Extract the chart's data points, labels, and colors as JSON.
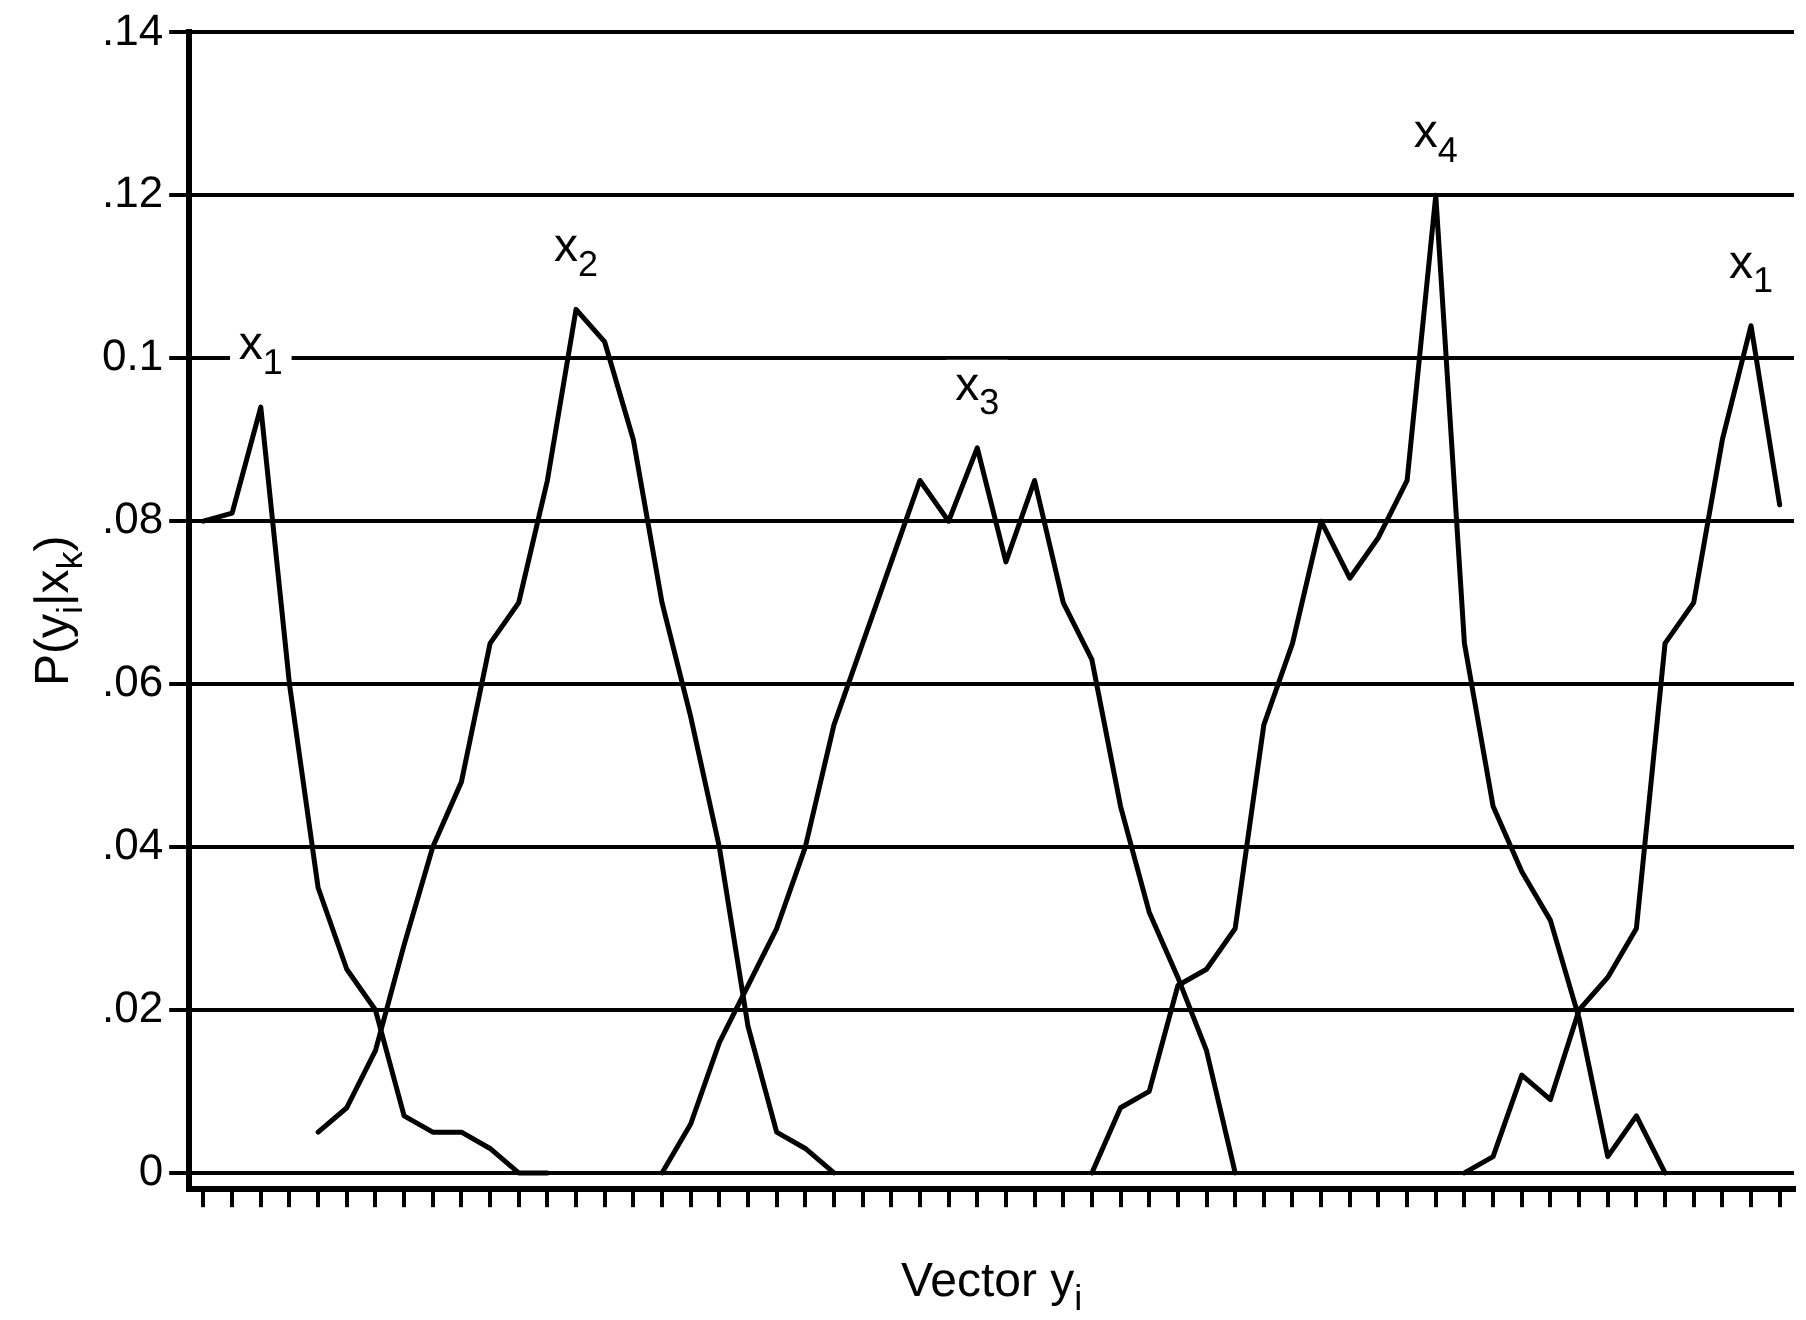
{
  "chart_data": {
    "type": "line",
    "xlabel": "Vector y$_{i}$",
    "ylabel": "P(y$_{i}$|x$_{k}$)",
    "categories": [
      null,
      null,
      null,
      null,
      null,
      null,
      null,
      null,
      null,
      null,
      null,
      null,
      null,
      null,
      null,
      null,
      null,
      null,
      null,
      null,
      null,
      null,
      null,
      null,
      null,
      null,
      null,
      null,
      null,
      null,
      null,
      null,
      null,
      null,
      null,
      null,
      null,
      null,
      null,
      null,
      null,
      null,
      null,
      null,
      null,
      null,
      null,
      null,
      null,
      null,
      null,
      null,
      null,
      null,
      null,
      null
    ],
    "ylim": [
      -0.002,
      0.14
    ],
    "yticks": [
      {
        "value": 0,
        "label": "0"
      },
      {
        "value": 0.02,
        "label": ".02"
      },
      {
        "value": 0.04,
        "label": ".04"
      },
      {
        "value": 0.06,
        "label": ".06"
      },
      {
        "value": 0.08,
        "label": ".08"
      },
      {
        "value": 0.1,
        "label": "0.1"
      },
      {
        "value": 0.12,
        "label": ".12"
      },
      {
        "value": 0.14,
        "label": ".14"
      }
    ],
    "grid": "y",
    "legend": false,
    "marker": "none",
    "line_style": "solid",
    "series": [
      {
        "name": "x$_{1}$",
        "color": "#000000",
        "values": [
          0.08,
          0.081,
          0.094,
          0.06,
          0.035,
          0.025,
          0.02,
          0.007,
          0.005,
          0.005,
          0.003,
          0,
          0,
          null,
          null,
          null,
          null,
          null,
          null,
          null,
          null,
          null,
          null,
          null,
          null,
          null,
          null,
          null,
          null,
          null,
          null,
          null,
          null,
          null,
          null,
          null,
          null,
          null,
          null,
          null,
          null,
          null,
          null,
          null,
          0,
          0.002,
          0.012,
          0.009,
          0.02,
          0.024,
          0.03,
          0.065,
          0.07,
          0.09,
          0.104,
          0.082
        ]
      },
      {
        "name": "x$_{2}$",
        "color": "#000000",
        "values": [
          null,
          null,
          null,
          null,
          0.005,
          0.008,
          0.015,
          0.028,
          0.04,
          0.048,
          0.065,
          0.07,
          0.085,
          0.106,
          0.102,
          0.09,
          0.07,
          0.056,
          0.04,
          0.018,
          0.005,
          0.003,
          0,
          null,
          null,
          null,
          null,
          null,
          null,
          null,
          null,
          null,
          null,
          null,
          null,
          null,
          null,
          null,
          null,
          null,
          null,
          null,
          null,
          null,
          null,
          null,
          null,
          null,
          null,
          null,
          null,
          null,
          null,
          null,
          null,
          null
        ]
      },
      {
        "name": "x$_{3}$",
        "color": "#000000",
        "values": [
          null,
          null,
          null,
          null,
          null,
          null,
          null,
          null,
          null,
          null,
          null,
          null,
          null,
          null,
          null,
          null,
          0,
          0.006,
          0.016,
          0.023,
          0.03,
          0.04,
          0.055,
          0.065,
          0.075,
          0.085,
          0.08,
          0.089,
          0.075,
          0.085,
          0.07,
          0.063,
          0.045,
          0.032,
          0.024,
          0.015,
          0,
          null,
          null,
          null,
          null,
          null,
          null,
          null,
          null,
          null,
          null,
          null,
          null,
          null,
          null,
          null,
          null,
          null,
          null,
          null
        ]
      },
      {
        "name": "x$_{4}$",
        "color": "#000000",
        "values": [
          null,
          null,
          null,
          null,
          null,
          null,
          null,
          null,
          null,
          null,
          null,
          null,
          null,
          null,
          null,
          null,
          null,
          null,
          null,
          null,
          null,
          null,
          null,
          null,
          null,
          null,
          null,
          null,
          null,
          null,
          null,
          0,
          0.008,
          0.01,
          0.023,
          0.025,
          0.03,
          0.055,
          0.065,
          0.08,
          0.073,
          0.078,
          0.085,
          0.12,
          0.065,
          0.045,
          0.037,
          0.031,
          0.019,
          0.002,
          0.007,
          0,
          null,
          null,
          null,
          null
        ]
      }
    ]
  }
}
